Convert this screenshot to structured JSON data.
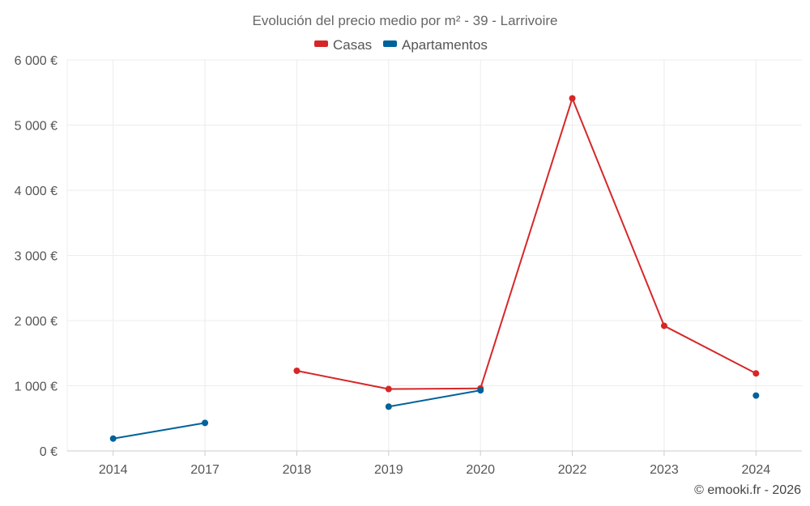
{
  "chart_data": {
    "type": "line",
    "title": "Evolución del precio medio por m² - 39 - Larrivoire",
    "categories": [
      "2014",
      "2017",
      "2018",
      "2019",
      "2020",
      "2022",
      "2023",
      "2024"
    ],
    "series": [
      {
        "name": "Casas",
        "color": "#d62728",
        "values": [
          null,
          null,
          1230,
          950,
          960,
          5410,
          1920,
          1190
        ]
      },
      {
        "name": "Apartamentos",
        "color": "#00629b",
        "values": [
          190,
          430,
          null,
          680,
          930,
          null,
          null,
          850
        ]
      }
    ],
    "ylim": [
      0,
      6000
    ],
    "yticks": [
      0,
      1000,
      2000,
      3000,
      4000,
      5000,
      6000
    ],
    "ytick_labels": [
      "0 €",
      "1 000 €",
      "2 000 €",
      "3 000 €",
      "4 000 €",
      "5 000 €",
      "6 000 €"
    ],
    "xlabel": "",
    "ylabel": "",
    "legend_position": "top-center",
    "grid": true
  },
  "credit": "© emooki.fr - 2026"
}
